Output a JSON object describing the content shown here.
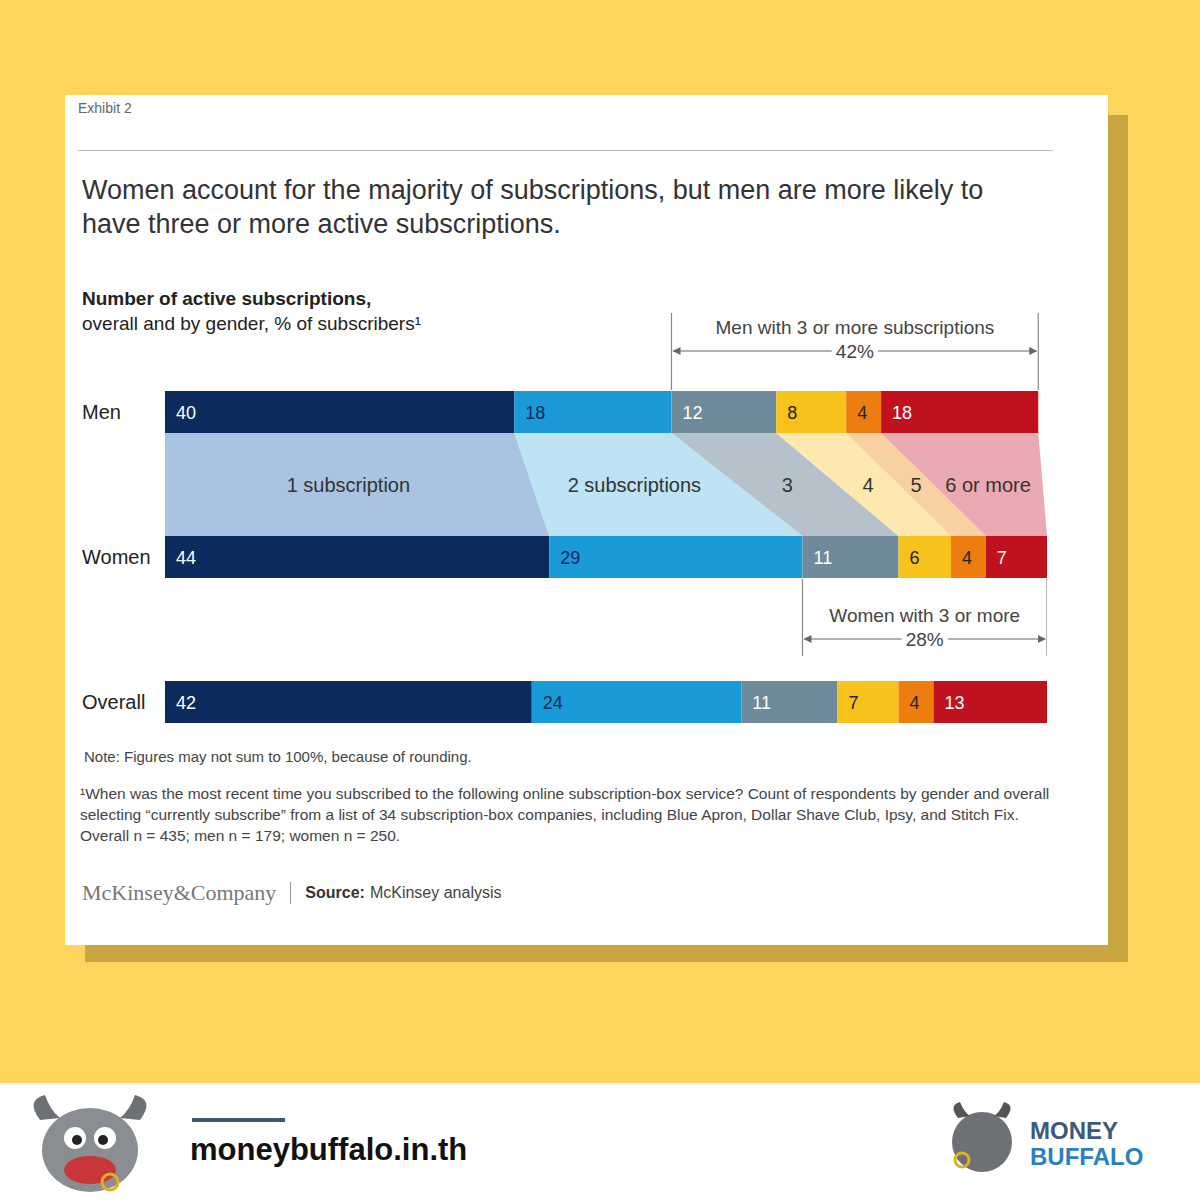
{
  "chart_data": {
    "type": "bar",
    "orientation": "horizontal",
    "stacked": true,
    "data_labels": true,
    "tick_labels": "y",
    "label": "Exhibit 2",
    "title": "Women account for the majority of subscriptions, but men are more likely to have three or more active subscriptions.",
    "subtitle": [
      "Number of active subscriptions,",
      "overall and by gender, % of subscribers¹"
    ],
    "categories": [
      "Men",
      "Women",
      "Overall"
    ],
    "xlim": [
      0,
      101
    ],
    "series": [
      {
        "name": "1 subscription",
        "color": "#0d2a5c",
        "values": [
          40,
          44,
          42
        ]
      },
      {
        "name": "2 subscriptions",
        "color": "#1a9ad6",
        "values": [
          18,
          29,
          24
        ]
      },
      {
        "name": "3",
        "color": "#6e8a9b",
        "values": [
          12,
          11,
          11
        ]
      },
      {
        "name": "4",
        "color": "#f7c21b",
        "values": [
          8,
          6,
          7
        ]
      },
      {
        "name": "5",
        "color": "#ee7d10",
        "values": [
          4,
          4,
          4
        ]
      },
      {
        "name": "6 or more",
        "color": "#c0111f",
        "values": [
          18,
          7,
          13
        ]
      }
    ],
    "annotations": [
      {
        "category": "Men",
        "from": "3",
        "text": "Men with 3 or more subscriptions",
        "value": 42,
        "value_label": "42%"
      },
      {
        "category": "Women",
        "from": "3",
        "text": "Women with 3 or more",
        "value": 28,
        "value_label": "28%"
      }
    ],
    "notes": [
      "Note: Figures may not sum to 100%, because of rounding.",
      "¹When was the most recent time you subscribed to the following online subscription-box service? Count of respondents by gender and overall selecting “currently subscribe” from a list of 34 subscription-box companies, including Blue Apron, Dollar Shave Club, Ipsy, and Stitch Fix. Overall n = 435; men n = 179; women n = 250."
    ],
    "source": {
      "company": "McKinsey&Company",
      "label": "Source:",
      "text": "McKinsey analysis"
    }
  },
  "footer": {
    "site": "moneybuffalo.in.th",
    "logo": [
      "MONEY",
      "BUFFALO"
    ]
  }
}
